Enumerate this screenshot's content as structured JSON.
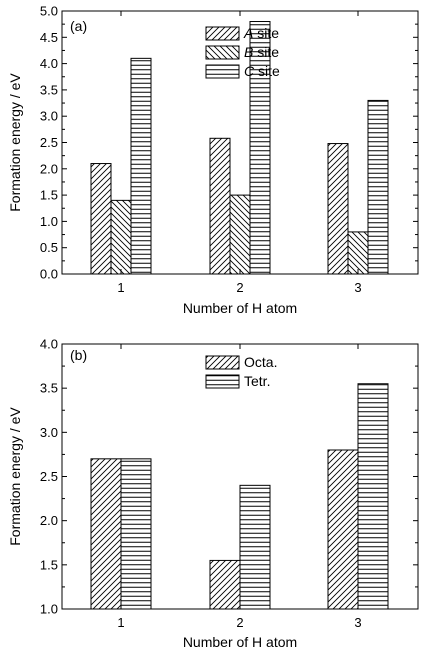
{
  "chart_data": [
    {
      "type": "bar",
      "panel_label": "(a)",
      "categories": [
        "1",
        "2",
        "3"
      ],
      "xlabel": "Number of H atom",
      "ylabel": "Formation energy / eV",
      "ylim": [
        0,
        5
      ],
      "yticks": [
        "0.0",
        "0.5",
        "1.0",
        "1.5",
        "2.0",
        "2.5",
        "3.0",
        "3.5",
        "4.0",
        "4.5",
        "5.0"
      ],
      "grid": false,
      "legend_position": "top-center",
      "series": [
        {
          "name": "A site",
          "name_italic": "A",
          "name_rest": " site",
          "pattern": "diag-up",
          "values": [
            2.1,
            2.58,
            2.48
          ]
        },
        {
          "name": "B site",
          "name_italic": "B",
          "name_rest": " site",
          "pattern": "diag-down",
          "values": [
            1.4,
            1.5,
            0.8
          ]
        },
        {
          "name": "C site",
          "name_italic": "C",
          "name_rest": " site",
          "pattern": "horizontal",
          "values": [
            4.1,
            4.8,
            3.3
          ]
        }
      ]
    },
    {
      "type": "bar",
      "panel_label": "(b)",
      "categories": [
        "1",
        "2",
        "3"
      ],
      "xlabel": "Number of H atom",
      "ylabel": "Formation energy / eV",
      "ylim": [
        1,
        4
      ],
      "yticks": [
        "1.0",
        "1.5",
        "2.0",
        "2.5",
        "3.0",
        "3.5",
        "4.0"
      ],
      "grid": false,
      "legend_position": "top-center",
      "series": [
        {
          "name": "Octa.",
          "pattern": "diag-up",
          "values": [
            2.7,
            1.55,
            2.8
          ]
        },
        {
          "name": "Tetr.",
          "pattern": "horizontal",
          "values": [
            2.7,
            2.4,
            3.55
          ]
        }
      ]
    }
  ]
}
